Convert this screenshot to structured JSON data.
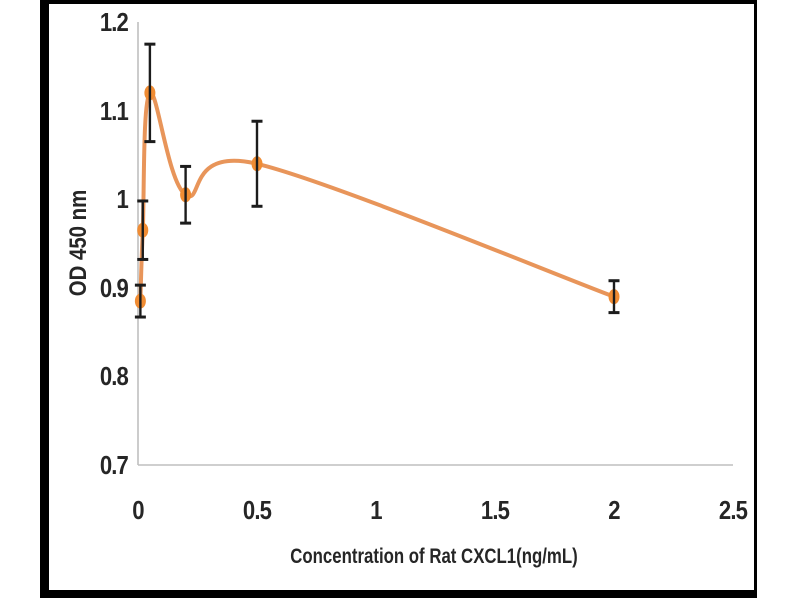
{
  "page": {
    "background": "#FFFFFF"
  },
  "frame": {
    "border_color": "#000000",
    "background": "#FFFFFF"
  },
  "chart_data": {
    "type": "line",
    "xlabel": "Concentration of Rat CXCL1(ng/mL)",
    "ylabel": "OD 450 nm",
    "xlim": [
      0,
      2.5
    ],
    "ylim": [
      0.7,
      1.2
    ],
    "x_ticks": [
      "0",
      "0.5",
      "1",
      "1.5",
      "2",
      "2.5"
    ],
    "y_ticks": [
      "0.7",
      "0.8",
      "0.9",
      "1",
      "1.1",
      "1.2"
    ],
    "grid": false,
    "legend": "none",
    "line_style": "smooth",
    "error_bars": true,
    "series": [
      {
        "line_color": "#E8955A",
        "marker_color": "#F08C33",
        "marker": "ellipse",
        "points": [
          {
            "x": 0.01,
            "y": 0.885,
            "err": 0.018
          },
          {
            "x": 0.02,
            "y": 0.965,
            "err": 0.033
          },
          {
            "x": 0.05,
            "y": 1.12,
            "err": 0.055
          },
          {
            "x": 0.2,
            "y": 1.005,
            "err": 0.032
          },
          {
            "x": 0.5,
            "y": 1.04,
            "err": 0.048
          },
          {
            "x": 2,
            "y": 0.89,
            "err": 0.018
          }
        ]
      }
    ],
    "error_bar_color": "#1C1C1C",
    "axis_line_color": "#BFBFBF",
    "text_color": "#262626"
  }
}
